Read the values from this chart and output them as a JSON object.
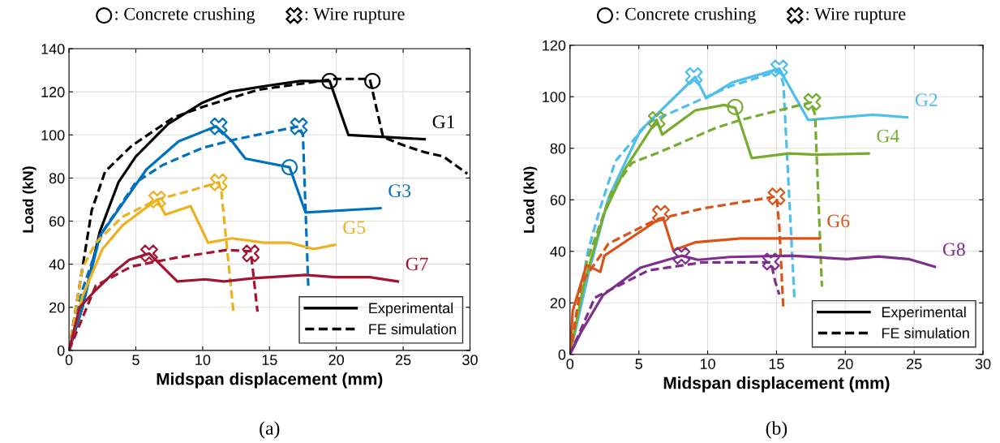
{
  "chart_data": [
    {
      "type": "line",
      "title": "(a)",
      "xlabel": "Midspan displacement (mm)",
      "ylabel": "Load (kN)",
      "xlim": [
        0,
        30
      ],
      "xticks": [
        0,
        5,
        10,
        15,
        20,
        25,
        30
      ],
      "ylim": [
        0,
        140
      ],
      "yticks": [
        0,
        20,
        40,
        60,
        80,
        100,
        120,
        140
      ],
      "grid": true,
      "annotations": [
        "G1",
        "G3",
        "G5",
        "G7",
        "Experimental",
        "FE simulation",
        ": Concrete crushing",
        ": Wire rupture"
      ],
      "series": [
        {
          "color": "#000000",
          "line_style": "solid",
          "x": [
            0,
            1,
            2.3,
            3.7,
            5,
            7.4,
            10,
            12,
            15,
            17.3,
            19.5,
            20.9,
            26.6
          ],
          "values": [
            0,
            20,
            55,
            78,
            90,
            105,
            115,
            120,
            123,
            125,
            125,
            100,
            98
          ]
        },
        {
          "color": "#000000",
          "line_style": "dashed",
          "x": [
            0,
            1,
            1.7,
            2.7,
            4.7,
            7.8,
            10,
            14.2,
            19.9,
            22.5,
            23.5,
            25.1,
            26.6,
            28,
            29.8
          ],
          "values": [
            0,
            38,
            65,
            83,
            95,
            108,
            113,
            121,
            126,
            126,
            99,
            95,
            92,
            90,
            82
          ]
        },
        {
          "color": "#0072bd",
          "line_style": "solid",
          "x": [
            0,
            1,
            2.3,
            5.8,
            8.2,
            11,
            12.2,
            13.2,
            16.5,
            17.7,
            23.3
          ],
          "values": [
            0,
            20,
            53,
            84,
            97,
            104,
            97,
            89,
            85,
            64,
            66
          ]
        },
        {
          "color": "#0072bd",
          "line_style": "dashed",
          "x": [
            0,
            1,
            2.5,
            5,
            7,
            10,
            12.5,
            17.2,
            17.5,
            17.9
          ],
          "values": [
            0,
            28,
            55,
            78,
            86,
            94,
            98,
            104,
            100,
            30
          ]
        },
        {
          "color": "#edb120",
          "line_style": "solid",
          "x": [
            0,
            1,
            2.5,
            4,
            5.5,
            6.6,
            7.2,
            9.1,
            10.4,
            12.2,
            14.6,
            16.5,
            18.3,
            19.9
          ],
          "values": [
            0,
            25,
            47,
            58,
            65,
            70,
            63,
            67,
            50,
            52,
            50,
            50,
            47,
            49
          ]
        },
        {
          "color": "#edb120",
          "line_style": "dashed",
          "x": [
            0,
            1,
            2,
            4,
            6.6,
            9,
            11.2,
            11.4,
            12.3
          ],
          "values": [
            0,
            38,
            50,
            62,
            70,
            74,
            78,
            73.5,
            18
          ]
        },
        {
          "color": "#a2142f",
          "line_style": "solid",
          "x": [
            0,
            0.8,
            2,
            3.5,
            4.5,
            6,
            8.1,
            10.2,
            11.6,
            13.8,
            17.7,
            19.9,
            22.5,
            24.6
          ],
          "values": [
            0,
            20,
            28,
            37,
            42,
            45,
            32,
            33,
            32,
            33.5,
            35,
            34,
            34,
            32
          ]
        },
        {
          "color": "#a2142f",
          "line_style": "dashed",
          "x": [
            0,
            2,
            4.7,
            8,
            11.8,
            13.6,
            14.1
          ],
          "values": [
            0,
            30,
            39,
            43,
            46.6,
            46,
            18
          ]
        },
        {
          "type": "scatter",
          "marker": "circle",
          "x": [
            19.5,
            22.7,
            16.5
          ],
          "values": [
            125,
            125,
            85
          ],
          "colors": [
            "#000000",
            "#000000",
            "#0072bd"
          ]
        },
        {
          "type": "scatter",
          "marker": "cross",
          "x": [
            11.2,
            17.2,
            6.6,
            11.2,
            6,
            13.6
          ],
          "values": [
            104,
            104,
            70,
            78,
            45,
            45
          ],
          "colors": [
            "#0072bd",
            "#0072bd",
            "#edb120",
            "#edb120",
            "#a2142f",
            "#a2142f"
          ]
        }
      ]
    },
    {
      "type": "line",
      "title": "(b)",
      "xlabel": "Midspan displacement (mm)",
      "ylabel": "Load (kN)",
      "xlim": [
        0,
        30
      ],
      "xticks": [
        0,
        5,
        10,
        15,
        20,
        25,
        30
      ],
      "ylim": [
        0,
        120
      ],
      "yticks": [
        0,
        20,
        40,
        60,
        80,
        100,
        120
      ],
      "grid": true,
      "annotations": [
        "G2",
        "G4",
        "G6",
        "G8",
        "Experimental",
        "FE simulation",
        ": Concrete crushing",
        ": Wire rupture"
      ],
      "series": [
        {
          "color": "#4dbeee",
          "line_style": "solid",
          "x": [
            0,
            1.4,
            2.8,
            5.1,
            9.1,
            9.9,
            11.8,
            15.2,
            17.3,
            22,
            24.5
          ],
          "values": [
            0,
            32.6,
            60.8,
            86.8,
            107.7,
            99.4,
            105.6,
            110.9,
            91,
            93,
            92
          ]
        },
        {
          "color": "#4dbeee",
          "line_style": "dashed",
          "x": [
            0,
            1.3,
            2.2,
            3.3,
            5.7,
            8.7,
            11.6,
            15.2,
            15.5,
            16.3
          ],
          "values": [
            0,
            40,
            57,
            75,
            90,
            97,
            104,
            110,
            105,
            22
          ]
        },
        {
          "color": "#77ac30",
          "line_style": "solid",
          "x": [
            0,
            1,
            2.5,
            4,
            6.3,
            6.7,
            9.1,
            11.2,
            12,
            13.2,
            15.9,
            17.9,
            21.7
          ],
          "values": [
            0,
            27,
            55,
            72,
            91,
            85.3,
            94.7,
            96.8,
            95.7,
            76.2,
            78,
            77.5,
            78
          ]
        },
        {
          "color": "#77ac30",
          "line_style": "dashed",
          "x": [
            0,
            1.2,
            3,
            4.5,
            6.5,
            10.6,
            12.4,
            15.4,
            17.5,
            17.8,
            18.3
          ],
          "values": [
            0,
            35.7,
            62.8,
            74.3,
            78.5,
            87.9,
            91,
            95,
            97.8,
            93,
            26.3
          ]
        },
        {
          "color": "#d95319",
          "line_style": "solid",
          "x": [
            0,
            0.2,
            1.2,
            2.2,
            2.5,
            6.3,
            6.8,
            7.5,
            9.1,
            12.4,
            18.1
          ],
          "values": [
            0,
            17,
            34.7,
            32,
            38.3,
            51.9,
            52.4,
            40.4,
            43.5,
            45,
            45
          ]
        },
        {
          "color": "#d95319",
          "line_style": "dashed",
          "x": [
            0,
            0.8,
            2.8,
            6.3,
            9.6,
            15,
            15.2,
            15.5
          ],
          "values": [
            0,
            27.3,
            43,
            52.4,
            56.6,
            61.3,
            50,
            17.4
          ]
        },
        {
          "color": "#7e2f8e",
          "line_style": "solid",
          "x": [
            0,
            0.8,
            2.4,
            5.1,
            8.1,
            9.3,
            11.6,
            16.1,
            20.1,
            22.4,
            24.6,
            26.5
          ],
          "values": [
            0,
            8.6,
            23,
            33.6,
            38.3,
            36.7,
            37.8,
            38.3,
            37,
            38,
            37,
            34
          ]
        },
        {
          "color": "#7e2f8e",
          "line_style": "dashed",
          "x": [
            0,
            1.8,
            5.7,
            9.6,
            14.6,
            14.9,
            15.2
          ],
          "values": [
            0,
            22,
            32.6,
            35.7,
            35.7,
            28.4,
            23.2
          ]
        },
        {
          "type": "scatter",
          "marker": "circle",
          "x": [
            12
          ],
          "values": [
            96
          ],
          "colors": [
            "#77ac30"
          ]
        },
        {
          "type": "scatter",
          "marker": "cross",
          "x": [
            9,
            15.2,
            6.3,
            17.6,
            6.6,
            15,
            8.1,
            14.6
          ],
          "values": [
            108,
            111,
            91,
            98,
            54.5,
            61.3,
            38.3,
            36
          ],
          "colors": [
            "#4dbeee",
            "#4dbeee",
            "#77ac30",
            "#77ac30",
            "#d95319",
            "#d95319",
            "#7e2f8e",
            "#7e2f8e"
          ]
        }
      ]
    }
  ]
}
